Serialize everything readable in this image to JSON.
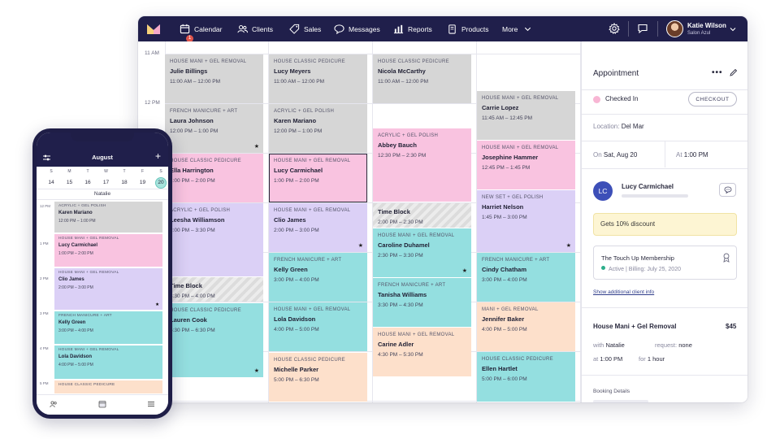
{
  "colors": {
    "nav_bg": "#201f4b",
    "gray": "#d6d6d6",
    "pink": "#f9c3e0",
    "lavender": "#dbd0f6",
    "teal": "#94dfe0",
    "peach": "#fde0cb",
    "status_checked_in": "#f8b6d4",
    "client_avatar": "#3d4fb8"
  },
  "nav": {
    "logo_icon": "mangomint-logo-icon",
    "calendar_badge": "1",
    "items": [
      {
        "label": "Calendar",
        "icon": "calendar-icon"
      },
      {
        "label": "Clients",
        "icon": "clients-icon"
      },
      {
        "label": "Sales",
        "icon": "tag-icon"
      },
      {
        "label": "Messages",
        "icon": "chat-icon"
      },
      {
        "label": "Reports",
        "icon": "bar-chart-icon"
      },
      {
        "label": "Products",
        "icon": "products-icon"
      },
      {
        "label": "More",
        "icon": "chevron-down-icon"
      }
    ],
    "user_name": "Katie Wilson",
    "user_salon": "Salon Azul"
  },
  "calendar": {
    "time_labels": [
      "11 AM",
      "12 PM"
    ],
    "columns": [
      [
        {
          "service": "HOUSE MANI + GEL REMOVAL",
          "client": "Julie Billings",
          "time": "11:00 AM – 12:00 PM",
          "color": "gray"
        },
        {
          "service": "FRENCH MANICURE + ART",
          "client": "Laura Johnson",
          "time": "12:00 PM – 1:00 PM",
          "color": "gray",
          "star": true
        },
        {
          "service": "HOUSE CLASSIC PEDICURE",
          "client": "Ella Harrington",
          "time": "1:00 PM – 2:00 PM",
          "color": "pink"
        },
        {
          "service": "ACRYLIC + GEL POLISH",
          "client": "Leesha Williamson",
          "time": "2:00 PM – 3:30 PM",
          "color": "lavender"
        },
        {
          "block": true,
          "client": "Time Block",
          "time": "3:30 PM – 4:00 PM"
        },
        {
          "service": "HOUSE CLASSIC PEDICURE",
          "client": "Lauren Cook",
          "time": "5:30 PM – 6:30 PM",
          "color": "teal",
          "star": true
        }
      ],
      [
        {
          "service": "HOUSE CLASSIC PEDICURE",
          "client": "Lucy Meyers",
          "time": "11:00 AM – 12:00 PM",
          "color": "gray"
        },
        {
          "service": "ACRYLIC + GEL POLISH",
          "client": "Karen Mariano",
          "time": "12:00 PM – 1:00 PM",
          "color": "gray"
        },
        {
          "service": "HOUSE MANI + GEL REMOVAL",
          "client": "Lucy Carmichael",
          "time": "1:00 PM – 2:00 PM",
          "color": "pink",
          "selected": true
        },
        {
          "service": "HOUSE MANI + GEL REMOVAL",
          "client": "Clio James",
          "time": "2:00 PM – 3:00 PM",
          "color": "lavender",
          "star": true
        },
        {
          "service": "FRENCH MANICURE + ART",
          "client": "Kelly Green",
          "time": "3:00 PM – 4:00 PM",
          "color": "teal"
        },
        {
          "service": "HOUSE MANI + GEL REMOVAL",
          "client": "Lola Davidson",
          "time": "4:00 PM – 5:00 PM",
          "color": "teal"
        },
        {
          "service": "HOUSE CLASSIC PEDICURE",
          "client": "Michelle Parker",
          "time": "5:00 PM – 6:30 PM",
          "color": "peach"
        }
      ],
      [
        {
          "service": "HOUSE CLASSIC PEDICURE",
          "client": "Nicola McCarthy",
          "time": "11:00 AM – 12:00 PM",
          "color": "gray"
        },
        {
          "service": "ACRYLIC + GEL POLISH",
          "client": "Abbey Bauch",
          "time": "12:30 PM – 2:30 PM",
          "color": "pink"
        },
        {
          "block": true,
          "client": "Time Block",
          "time": "2:00 PM – 2:30 PM"
        },
        {
          "service": "HOUSE MANI + GEL REMOVAL",
          "client": "Caroline Duhamel",
          "time": "2:30 PM – 3:30 PM",
          "color": "teal",
          "star": true
        },
        {
          "service": "FRENCH MANICURE + ART",
          "client": "Tanisha Williams",
          "time": "3:30 PM – 4:30 PM",
          "color": "teal"
        },
        {
          "service": "HOUSE MANI + GEL REMOVAL",
          "client": "Carine Adler",
          "time": "4:30 PM – 5:30 PM",
          "color": "peach"
        }
      ],
      [
        {
          "service": "HOUSE MANI + GEL REMOVAL",
          "client": "Carrie Lopez",
          "time": "11:45 AM – 12:45 PM",
          "color": "gray"
        },
        {
          "service": "HOUSE MANI + GEL REMOVAL",
          "client": "Josephine Hammer",
          "time": "12:45 PM – 1:45 PM",
          "color": "pink"
        },
        {
          "service": "NEW SET + GEL POLISH",
          "client": "Harriet Nelson",
          "time": "1:45 PM – 3:00 PM",
          "color": "lavender",
          "star": true
        },
        {
          "service": "FRENCH MANICURE + ART",
          "client": "Cindy Chatham",
          "time": "3:00 PM – 4:00 PM",
          "color": "teal"
        },
        {
          "service": "MANI + GEL REMOVAL",
          "client": "Jennifer Baker",
          "time": "4:00 PM – 5:00 PM",
          "color": "peach"
        },
        {
          "service": "HOUSE CLASSIC PEDICURE",
          "client": "Ellen Hartlet",
          "time": "5:00 PM – 6:00 PM",
          "color": "teal"
        }
      ]
    ]
  },
  "panel": {
    "title": "Appointment",
    "more": "•••",
    "status": "Checked In",
    "checkout": "CHECKOUT",
    "location_label": "Location:",
    "location": "Del Mar",
    "date_label": "On",
    "date": "Sat, Aug 20",
    "time_label": "At",
    "time": "1:00 PM",
    "client_initials": "LC",
    "client_name": "Lucy Carmichael",
    "discount": "Gets 10% discount",
    "membership_title": "The Touch Up Membership",
    "membership_status": "Active",
    "membership_billing": "| Billing: July 25, 2020",
    "show_info": "Show additional client info",
    "service": "House Mani + Gel Removal",
    "price": "$45",
    "with_label": "with",
    "with": "Natalie",
    "request_label": "request:",
    "request": "none",
    "at_label": "at",
    "at": "1:00 PM",
    "for_label": "for",
    "duration": "1 hour",
    "booking_details": "Booking Details"
  },
  "phone": {
    "month": "August",
    "plus": "+",
    "days": [
      {
        "l": "S",
        "n": "14"
      },
      {
        "l": "M",
        "n": "15"
      },
      {
        "l": "T",
        "n": "16"
      },
      {
        "l": "W",
        "n": "17"
      },
      {
        "l": "T",
        "n": "18"
      },
      {
        "l": "F",
        "n": "19"
      },
      {
        "l": "S",
        "n": "20"
      }
    ],
    "staff": "Natalie",
    "time_labels": [
      "12 PM",
      "1 PM",
      "2 PM",
      "3 PM",
      "4 PM",
      "5 PM"
    ],
    "appts": [
      {
        "service": "ACRYLIC + GEL POLISH",
        "client": "Karen Mariano",
        "time": "12:00 PM – 1:00 PM",
        "color": "gray"
      },
      {
        "service": "HOUSE MANI + GEL REMOVAL",
        "client": "Lucy Carmichael",
        "time": "1:00 PM – 2:00 PM",
        "color": "pink"
      },
      {
        "service": "HOUSE MANI + GEL REMOVAL",
        "client": "Clio James",
        "time": "2:00 PM – 3:00 PM",
        "color": "lavender",
        "star": true
      },
      {
        "service": "FRENCH MANICURE + ART",
        "client": "Kelly Green",
        "time": "3:00 PM – 4:00 PM",
        "color": "teal"
      },
      {
        "service": "HOUSE MANI + GEL REMOVAL",
        "client": "Lola Davidson",
        "time": "4:00 PM – 5:00 PM",
        "color": "teal"
      },
      {
        "service": "HOUSE CLASSIC PEDICURE",
        "client": "",
        "time": "",
        "color": "peach"
      }
    ]
  }
}
